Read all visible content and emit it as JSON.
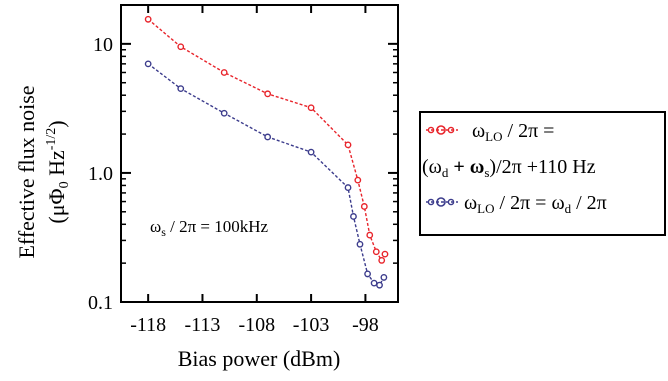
{
  "chart_data": {
    "type": "line",
    "xlabel": "Bias power (dBm)",
    "ylabel_line1": "Effective flux noise",
    "ylabel_line2_prefix": "(μΦ",
    "ylabel_line2_sub": "0",
    "ylabel_line2_mid": " Hz",
    "ylabel_line2_sup": "-1/2",
    "ylabel_line2_suffix": ")",
    "xlim": [
      -120.5,
      -95
    ],
    "ylim": [
      0.1,
      20
    ],
    "yscale": "log",
    "x_ticks": [
      -118,
      -113,
      -108,
      -103,
      -98
    ],
    "x_tick_labels": [
      "-118",
      "-113",
      "-108",
      "-103",
      "-98"
    ],
    "y_ticks": [
      0.1,
      1.0,
      10
    ],
    "y_tick_labels": [
      "0.1",
      "1.0",
      "10"
    ],
    "annotation": {
      "omega": "ω",
      "sub": "s",
      "rest": " / 2π = 100kHz"
    },
    "legend_placement": "right",
    "series": [
      {
        "color": "#e8242b",
        "legend": {
          "line1_a": "ω",
          "line1_sub": "LO",
          "line1_b": " / 2π =",
          "line2_a": "(ω",
          "line2_sub1": "d",
          "line2_b": " + ω",
          "line2_sub2": "s",
          "line2_c": ")/2π +110 Hz"
        },
        "points": [
          {
            "x": -118,
            "y": 15.5
          },
          {
            "x": -115,
            "y": 9.5
          },
          {
            "x": -111,
            "y": 6.0
          },
          {
            "x": -107,
            "y": 4.1
          },
          {
            "x": -103,
            "y": 3.2
          },
          {
            "x": -99.6,
            "y": 1.65
          },
          {
            "x": -98.7,
            "y": 0.88
          },
          {
            "x": -98.1,
            "y": 0.55
          },
          {
            "x": -97.6,
            "y": 0.33
          },
          {
            "x": -97.0,
            "y": 0.245
          },
          {
            "x": -96.5,
            "y": 0.21
          },
          {
            "x": -96.2,
            "y": 0.235
          }
        ]
      },
      {
        "color": "#3c3c8c",
        "legend": {
          "a": "ω",
          "sub1": "LO",
          "b": " / 2π = ω",
          "sub2": "d",
          "c": " / 2π"
        },
        "points": [
          {
            "x": -118,
            "y": 7.0
          },
          {
            "x": -115,
            "y": 4.5
          },
          {
            "x": -111,
            "y": 2.9
          },
          {
            "x": -107,
            "y": 1.9
          },
          {
            "x": -103,
            "y": 1.45
          },
          {
            "x": -99.6,
            "y": 0.77
          },
          {
            "x": -99.1,
            "y": 0.46
          },
          {
            "x": -98.5,
            "y": 0.28
          },
          {
            "x": -97.8,
            "y": 0.165
          },
          {
            "x": -97.2,
            "y": 0.14
          },
          {
            "x": -96.7,
            "y": 0.135
          },
          {
            "x": -96.3,
            "y": 0.155
          }
        ]
      }
    ]
  }
}
